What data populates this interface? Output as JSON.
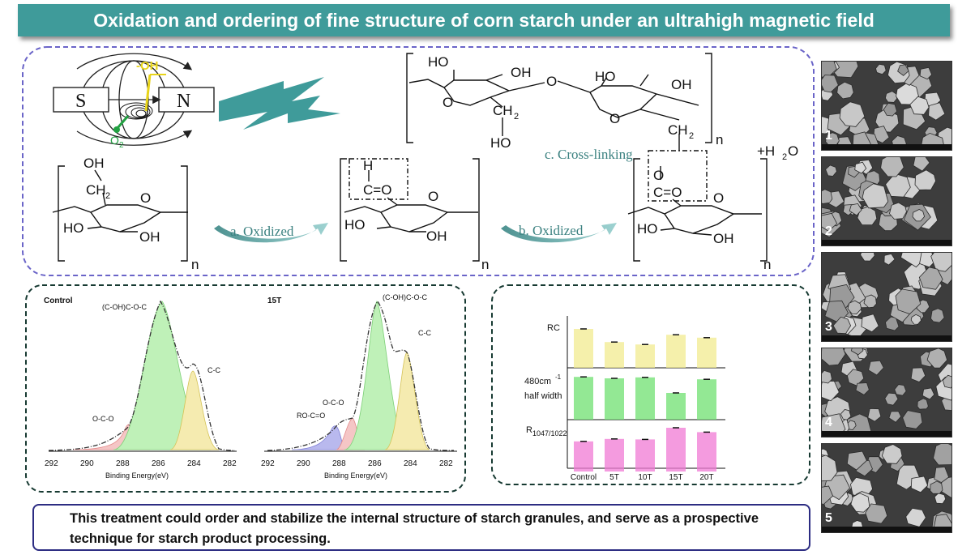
{
  "title": "Oxidation and ordering of fine structure of corn starch under an ultrahigh magnetic field",
  "scheme": {
    "magnet_s": "S",
    "magnet_n": "N",
    "oh_label": "-OH",
    "o2_label": "O",
    "o2_sub": "2",
    "ho": "HO",
    "oh": "OH",
    "o": "O",
    "ch2": "CH",
    "sub2": "2",
    "n": "n",
    "h": "H",
    "c_double_o": "C=O",
    "step_a": "a. Oxidized",
    "step_b": "b. Oxidized",
    "step_c": "c. Cross-linking",
    "water": "+H",
    "water_sub": "2",
    "water_o": "O"
  },
  "xps": {
    "control_label": "Control",
    "t15_label": "15T",
    "peak_main": "(C-OH)C-O-C",
    "peak_cc": "C-C",
    "peak_oco": "O-C-O",
    "peak_roco": "RO-C=O",
    "xlabel": "Binding Energy(eV)",
    "ticks": [
      "292",
      "290",
      "288",
      "286",
      "284",
      "282"
    ]
  },
  "chart_data": {
    "type": "bar",
    "categories": [
      "Control",
      "5T",
      "10T",
      "15T",
      "20T"
    ],
    "panels": [
      {
        "label": "RC",
        "color": "#f2eb8f",
        "values": [
          0.8,
          0.53,
          0.48,
          0.68,
          0.62
        ]
      },
      {
        "label": "480cm-1 half width",
        "color": "#6fe070",
        "values": [
          0.88,
          0.85,
          0.87,
          0.55,
          0.83
        ]
      },
      {
        "label": "R1047/1022",
        "color": "#f07ad4",
        "values": [
          0.62,
          0.67,
          0.66,
          0.9,
          0.81
        ]
      }
    ]
  },
  "bar_labels": {
    "rc": "RC",
    "halfwidth_a": "480cm",
    "halfwidth_sup": "-1",
    "halfwidth_b": "half width",
    "ratio_r": "R",
    "ratio_sub": "1047/1022"
  },
  "sem_numbers": [
    "1",
    "2",
    "3",
    "4",
    "5"
  ],
  "conclusion": "This treatment could order and stabilize the internal structure of starch granules, and serve as a prospective technique for starch product processing."
}
